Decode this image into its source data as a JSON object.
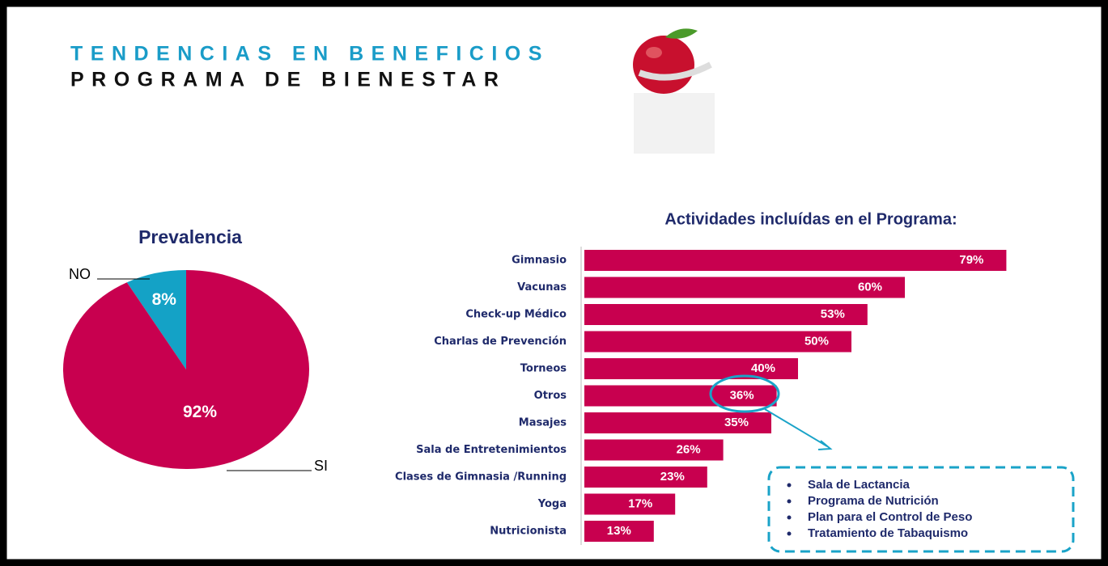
{
  "header": {
    "title": "TENDENCIAS EN BENEFICIOS",
    "subtitle": "PROGRAMA DE BIENESTAR"
  },
  "chart_data": [
    {
      "type": "pie",
      "title": "Prevalencia",
      "categories": [
        "NO",
        "SI"
      ],
      "values": [
        8,
        92
      ],
      "value_labels": [
        "8%",
        "92%"
      ],
      "colors": [
        "#14a2c6",
        "#c8004f"
      ]
    },
    {
      "type": "barh",
      "title": "Actividades incluídas en el Programa:",
      "categories": [
        "Gimnasio",
        "Vacunas",
        "Check-up Médico",
        "Charlas de Prevención",
        "Torneos",
        "Otros",
        "Masajes",
        "Sala de Entretenimientos",
        "Clases de Gimnasia /Running",
        "Yoga",
        "Nutricionista"
      ],
      "values": [
        79,
        60,
        53,
        50,
        40,
        36,
        35,
        26,
        23,
        17,
        13
      ],
      "value_labels": [
        "79%",
        "60%",
        "53%",
        "50%",
        "40%",
        "36%",
        "35%",
        "26%",
        "23%",
        "17%",
        "13%"
      ],
      "color": "#c8004f"
    }
  ],
  "callout": {
    "items": [
      "Sala de Lactancia",
      "Programa de Nutrición",
      "Plan para el Control de Peso",
      "Tratamiento de Tabaquismo"
    ]
  }
}
